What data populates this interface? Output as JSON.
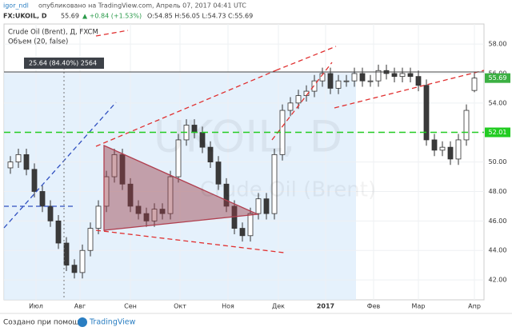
{
  "header": {
    "author": "igor_ndl",
    "published": "опубликовано на TradingView.com, Апрель 07, 2017 04:41 UTC",
    "symbol": "FX:UKOIL, D",
    "price": "55.69",
    "change": "▲ +0.84 (+1.53%)",
    "ohlc": "O:54.85 H:56.05 L:54.73 C:55.69"
  },
  "chart_data": {
    "type": "candlestick",
    "series": [
      {
        "name": "Crude Oil (Brent), Д, FXCM",
        "open": [
          49.6,
          50.0,
          50.5,
          49.5,
          48.0,
          47.0,
          46.0,
          44.5,
          43.0,
          42.5,
          44.0,
          45.5,
          47.0,
          49.0,
          50.5,
          48.5,
          47.0,
          46.5,
          46.0,
          46.8,
          46.5,
          49.0,
          51.5,
          52.5,
          52.0,
          51.0,
          50.0,
          48.5,
          47.0,
          45.5,
          45.0,
          46.5,
          47.5,
          46.5,
          50.5,
          53.5,
          54.0,
          54.5,
          54.8,
          55.5,
          56.0,
          55.0,
          55.5,
          55.5,
          56.0,
          55.5,
          55.5,
          56.2,
          56.0,
          55.8,
          56.0,
          55.8,
          55.2,
          51.5,
          50.8,
          51.0,
          50.2,
          51.5,
          54.85
        ],
        "high": [
          50.4,
          50.9,
          50.9,
          49.9,
          48.4,
          47.4,
          46.4,
          44.9,
          43.4,
          44.4,
          45.9,
          47.4,
          49.4,
          50.9,
          50.9,
          48.9,
          47.4,
          46.9,
          47.2,
          47.2,
          49.4,
          51.9,
          52.9,
          52.9,
          52.4,
          51.4,
          50.4,
          48.9,
          47.4,
          45.9,
          46.9,
          47.9,
          47.9,
          50.9,
          53.9,
          54.4,
          54.9,
          55.2,
          55.9,
          56.4,
          56.4,
          55.9,
          55.9,
          56.4,
          56.4,
          55.9,
          56.6,
          56.6,
          56.4,
          56.4,
          56.4,
          56.2,
          55.6,
          51.9,
          51.4,
          51.4,
          51.9,
          53.9,
          56.05
        ],
        "low": [
          49.2,
          49.6,
          49.1,
          47.6,
          46.6,
          45.6,
          44.1,
          42.6,
          42.1,
          42.1,
          43.6,
          45.1,
          46.6,
          48.6,
          48.1,
          46.6,
          46.1,
          45.6,
          45.6,
          46.1,
          46.1,
          48.6,
          51.1,
          51.6,
          50.6,
          49.6,
          48.1,
          46.6,
          45.1,
          44.6,
          44.6,
          46.1,
          46.1,
          46.1,
          50.1,
          53.1,
          53.6,
          54.1,
          54.4,
          55.1,
          54.6,
          54.6,
          55.1,
          55.1,
          55.1,
          55.1,
          55.1,
          55.6,
          55.4,
          55.4,
          55.4,
          54.8,
          51.1,
          50.4,
          50.4,
          49.8,
          49.8,
          51.1,
          54.73
        ],
        "close": [
          50.0,
          50.5,
          49.5,
          48.0,
          47.0,
          46.0,
          44.5,
          43.0,
          42.5,
          44.0,
          45.5,
          47.0,
          49.0,
          50.5,
          48.5,
          47.0,
          46.5,
          46.0,
          46.8,
          46.5,
          49.0,
          51.5,
          52.5,
          52.0,
          51.0,
          50.0,
          48.5,
          47.0,
          45.5,
          45.0,
          46.5,
          47.5,
          46.5,
          50.5,
          53.5,
          54.0,
          54.5,
          54.8,
          55.5,
          56.0,
          55.0,
          55.5,
          55.5,
          56.0,
          55.5,
          55.5,
          56.2,
          56.0,
          55.8,
          56.0,
          55.8,
          55.2,
          51.5,
          50.8,
          51.0,
          50.2,
          51.5,
          53.5,
          55.69
        ],
        "up_color": "#ffffff",
        "down_color": "#3a3a3a"
      }
    ],
    "indicator": "Объем (20, false)",
    "watermark": [
      "UKOIL, D",
      "Crude Oil (Brent)"
    ],
    "measure_label": "25.64 (84.40%) 2564",
    "level": 52.01,
    "level_color": "#22cc22",
    "xlim": [
      -0.8,
      59.2
    ],
    "xticks": [
      {
        "value": 3.2,
        "label": "Июл"
      },
      {
        "value": 8.7,
        "label": "Авг"
      },
      {
        "value": 15,
        "label": "Сен"
      },
      {
        "value": 21.2,
        "label": "Окт"
      },
      {
        "value": 27.2,
        "label": "Ноя"
      },
      {
        "value": 33.5,
        "label": "Дек"
      },
      {
        "value": 39.4,
        "label": "2017"
      },
      {
        "value": 45.4,
        "label": "Фев"
      },
      {
        "value": 51,
        "label": "Мар"
      },
      {
        "value": 58,
        "label": "Апр"
      }
    ],
    "ylim": [
      40.65,
      59.36
    ],
    "yticks": [
      {
        "value": 42,
        "label": "42.00"
      },
      {
        "value": 44,
        "label": "44.00"
      },
      {
        "value": 46,
        "label": "46.00"
      },
      {
        "value": 48,
        "label": "48.00"
      },
      {
        "value": 50,
        "label": "50.00"
      },
      {
        "value": 52,
        "label": "52.00"
      },
      {
        "value": 54,
        "label": "54.00"
      },
      {
        "value": 56,
        "label": "56.00"
      },
      {
        "value": 58,
        "label": "58.00"
      }
    ],
    "grid": true
  },
  "footer": {
    "made_with": "Создано при помощи",
    "brand": "TradingView"
  }
}
